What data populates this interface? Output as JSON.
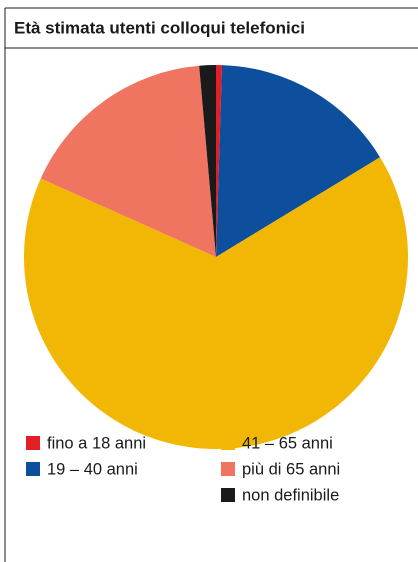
{
  "chart_data": {
    "type": "pie",
    "title": "Età stimata utenti colloqui telefonici",
    "categories": [
      "fino a 18 anni",
      "19 – 40 anni",
      "41 – 65 anni",
      "più di 65 anni",
      "non definibile"
    ],
    "values": [
      0.5,
      15.8,
      65.4,
      16.9,
      1.4
    ],
    "colors": [
      "#e31e24",
      "#0d4f9c",
      "#f2b705",
      "#f07560",
      "#1a1a1a"
    ],
    "legend": "bottom"
  }
}
